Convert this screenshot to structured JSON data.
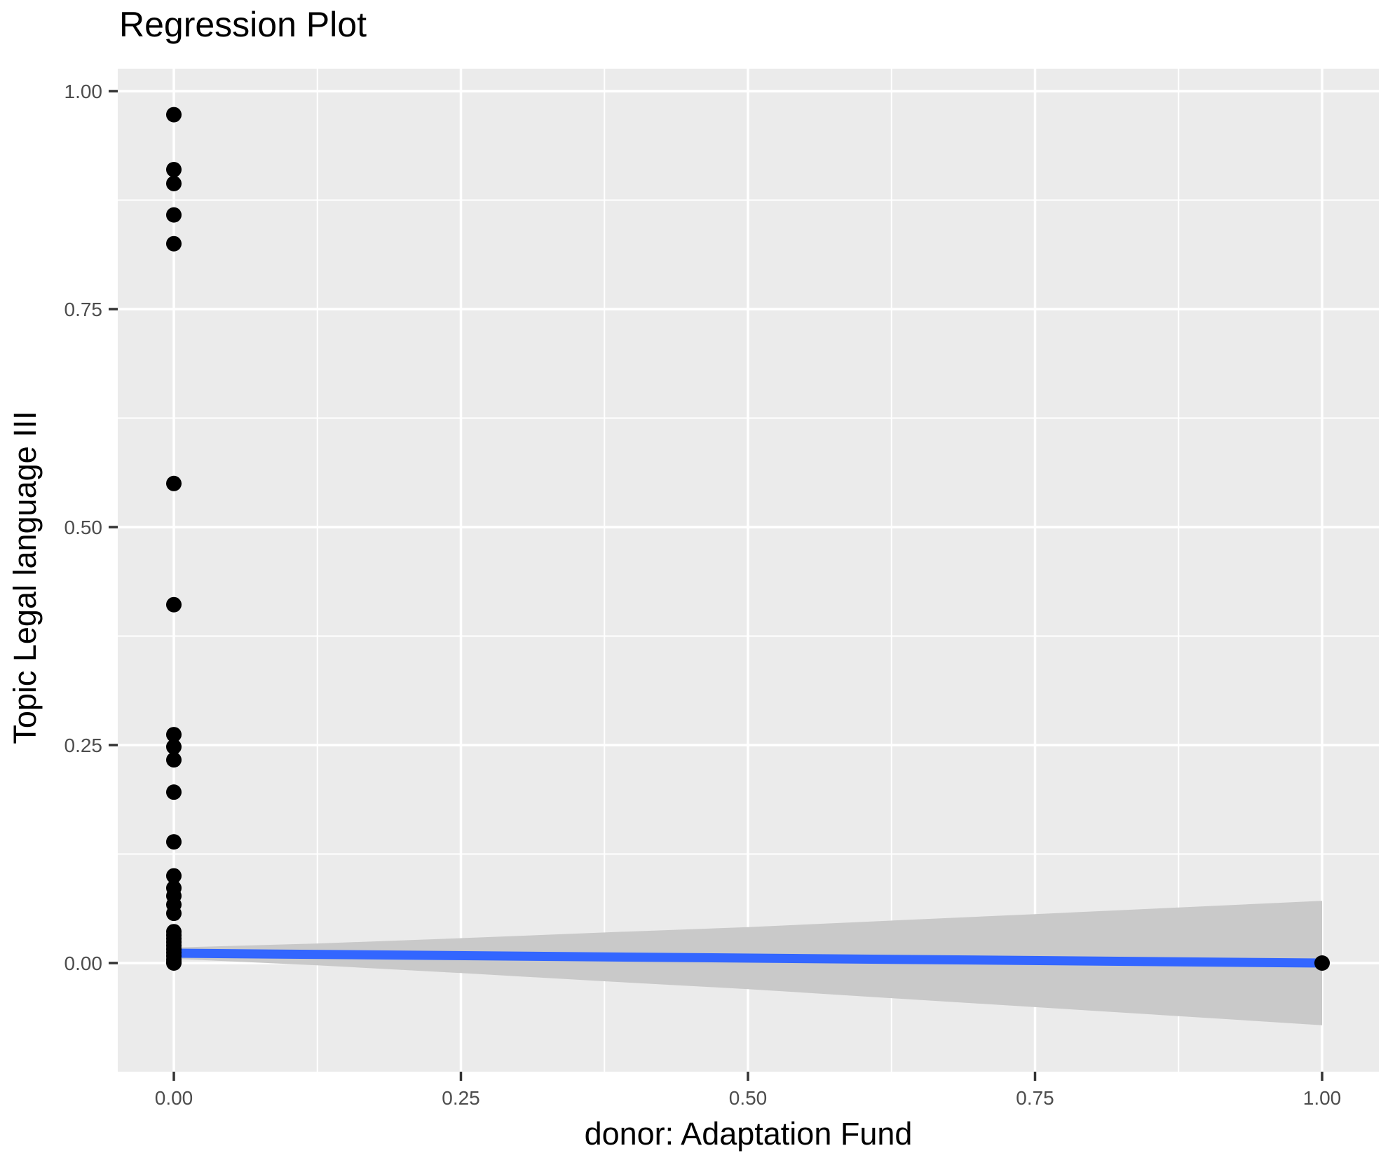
{
  "title": "Regression Plot",
  "x_axis": {
    "title": "donor: Adaptation Fund",
    "tick_labels": [
      "0.00",
      "0.25",
      "0.50",
      "0.75",
      "1.00"
    ],
    "tick_values": [
      0,
      0.25,
      0.5,
      0.75,
      1
    ],
    "minor_tick_values": [
      0.125,
      0.375,
      0.625,
      0.875
    ]
  },
  "y_axis": {
    "title": "Topic Legal language III",
    "tick_labels": [
      "0.00",
      "0.25",
      "0.50",
      "0.75",
      "1.00"
    ],
    "tick_values": [
      0,
      0.25,
      0.5,
      0.75,
      1
    ],
    "minor_tick_values": [
      0.125,
      0.375,
      0.625,
      0.875
    ]
  },
  "chart_data": {
    "type": "scatter",
    "title": "Regression Plot",
    "xlabel": "donor: Adaptation Fund",
    "ylabel": "Topic Legal language III",
    "xlim": [
      -0.049,
      1.05
    ],
    "ylim": [
      -0.125,
      1.026
    ],
    "grid": "on",
    "legend": "none",
    "points": [
      [
        0,
        0.973
      ],
      [
        0,
        0.91
      ],
      [
        0,
        0.894
      ],
      [
        0,
        0.858
      ],
      [
        0,
        0.825
      ],
      [
        0,
        0.55
      ],
      [
        0,
        0.411
      ],
      [
        0,
        0.262
      ],
      [
        0,
        0.248
      ],
      [
        0,
        0.233
      ],
      [
        0,
        0.196
      ],
      [
        0,
        0.139
      ],
      [
        0,
        0.1
      ],
      [
        0,
        0.086
      ],
      [
        0,
        0.077
      ],
      [
        0,
        0.067
      ],
      [
        0,
        0.057
      ],
      [
        0,
        0.036
      ],
      [
        0,
        0.032
      ],
      [
        0,
        0.028
      ],
      [
        0,
        0.024
      ],
      [
        0,
        0.02
      ],
      [
        0,
        0.016
      ],
      [
        0,
        0.012
      ],
      [
        0,
        0.008
      ],
      [
        0,
        0.004
      ],
      [
        0,
        0.001
      ],
      [
        0,
        0.0
      ],
      [
        1,
        0.0
      ]
    ],
    "regression_line": {
      "x": [
        0,
        1
      ],
      "y": [
        0.0113,
        0.0
      ]
    },
    "ci_band": {
      "x": [
        0,
        0.125,
        0.25,
        0.375,
        0.5,
        0.625,
        0.75,
        0.875,
        1
      ],
      "upper": [
        0.0178,
        0.0224,
        0.0285,
        0.0351,
        0.0412,
        0.0487,
        0.0561,
        0.0637,
        0.0713
      ],
      "lower": [
        0.0048,
        -0.0026,
        -0.0115,
        -0.0209,
        -0.0299,
        -0.0403,
        -0.0505,
        -0.0609,
        -0.0713
      ]
    },
    "colors": {
      "point": "#000000",
      "line": "#3366FF",
      "band": "#C9C9C9",
      "panel_background": "#EBEBEB",
      "grid": "#FFFFFF",
      "tick_text": "#4D4D4D",
      "tick_mark": "#333333",
      "title_text": "#000000"
    }
  }
}
